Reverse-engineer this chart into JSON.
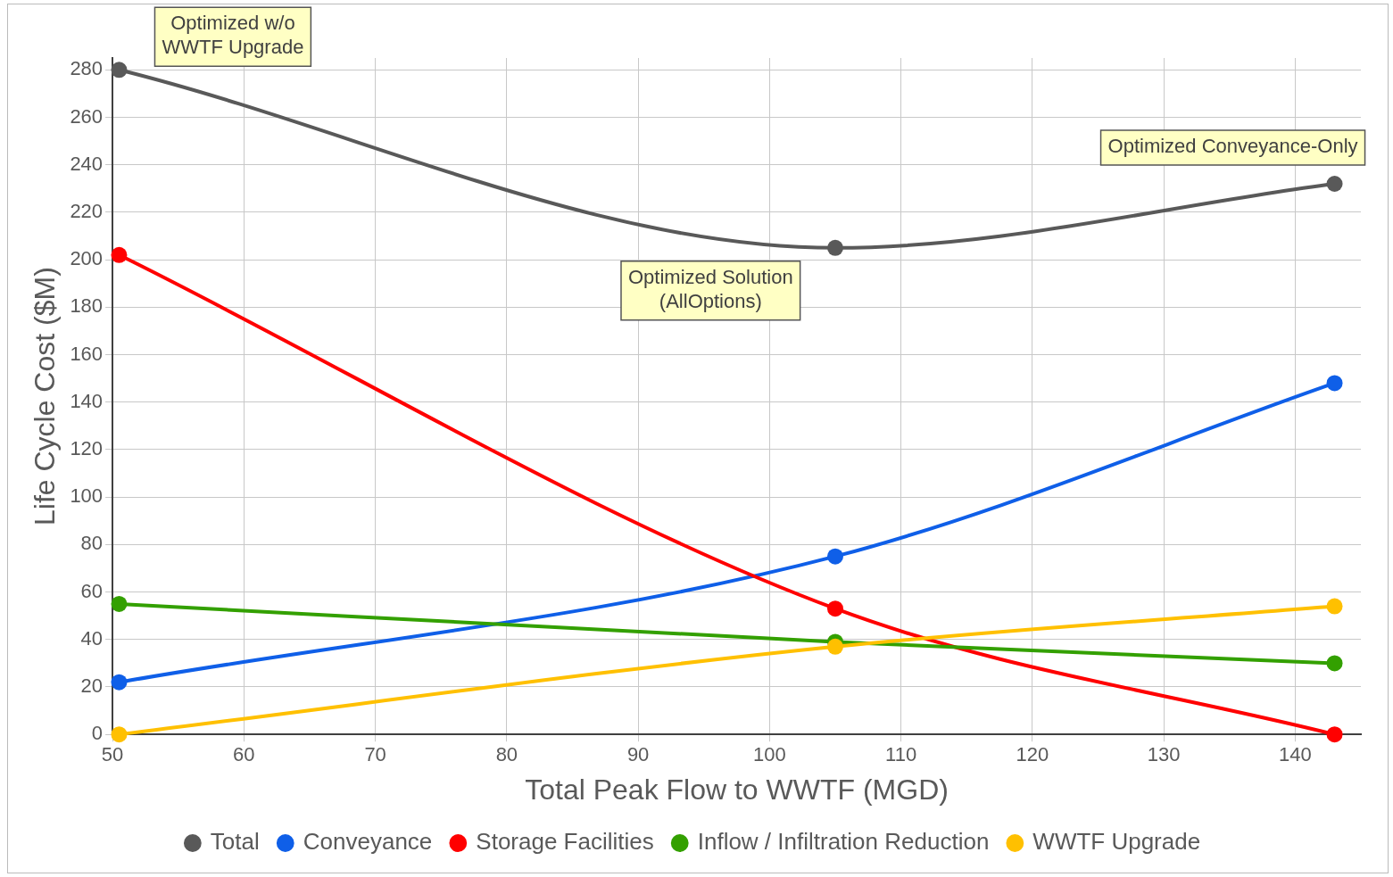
{
  "chart_data": {
    "type": "line",
    "xlabel": "Total Peak Flow to WWTF (MGD)",
    "ylabel": "Life Cycle Cost ($M)",
    "x": [
      50.5,
      105,
      143
    ],
    "series": [
      {
        "name": "Total",
        "color": "#595959",
        "values": [
          280,
          205,
          232
        ]
      },
      {
        "name": "Conveyance",
        "color": "#0f5fe8",
        "values": [
          22,
          75,
          148
        ]
      },
      {
        "name": "Storage Facilities",
        "color": "#ff0000",
        "values": [
          202,
          53,
          0
        ]
      },
      {
        "name": "Inflow / Infiltration Reduction",
        "color": "#33a000",
        "values": [
          55,
          39,
          30
        ]
      },
      {
        "name": "WWTF Upgrade",
        "color": "#ffc000",
        "values": [
          0,
          37,
          54
        ]
      }
    ],
    "xlim": [
      50,
      145
    ],
    "xticks": [
      50,
      60,
      70,
      80,
      90,
      100,
      110,
      120,
      130,
      140
    ],
    "ylim": [
      0,
      285
    ],
    "yticks": [
      0,
      20,
      40,
      60,
      80,
      100,
      120,
      140,
      160,
      180,
      200,
      220,
      240,
      260,
      280
    ],
    "grid": true,
    "legend": "bottom",
    "marker": "circle",
    "line_style": "solid",
    "annotations": [
      {
        "text": "Optimized w/o WWTF Upgrade",
        "x": 50.5,
        "y": 280
      },
      {
        "text": "Optimized Solution (AllOptions)",
        "x": 105,
        "y": 205
      },
      {
        "text": "Optimized Conveyance-Only",
        "x": 143,
        "y": 232
      }
    ]
  }
}
